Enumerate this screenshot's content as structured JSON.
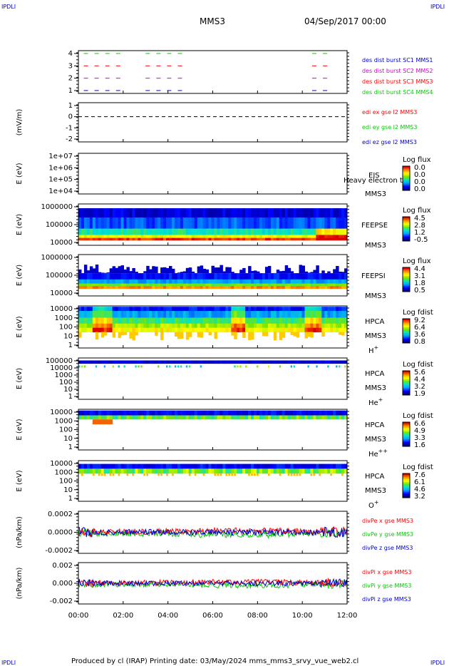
{
  "header": {
    "corner_left_top": "IPDLI",
    "corner_right_top": "IPDLI",
    "corner_left_bottom": "IPDLI",
    "corner_right_bottom": "IPDLI",
    "spacecraft": "MMS3",
    "datetime": "04/Sep/2017 00:00"
  },
  "footer": {
    "text": "Produced by cl (IRAP)   Printing date: 03/May/2024   mms_mms3_srvy_vue_web2.cl"
  },
  "colors": {
    "red": "#ff0000",
    "green": "#00cc00",
    "blue": "#0000cc",
    "magenta": "#cc00cc"
  },
  "chart_data": [
    {
      "id": "burst",
      "type": "line",
      "yticks": [
        "4",
        "3",
        "2",
        "1"
      ],
      "ylabel": "",
      "legend": [
        {
          "text": "des dist burst SC1 MMS1",
          "color": "#0000cc"
        },
        {
          "text": "des dist burst SC2 MMS2",
          "color": "#cc00cc"
        },
        {
          "text": "des dist burst SC3 MMS3",
          "color": "#ff0000"
        },
        {
          "text": "des dist burst SC4 MMS4",
          "color": "#00cc00"
        }
      ]
    },
    {
      "id": "edi",
      "type": "line",
      "yticks": [
        "1",
        "0",
        "-1",
        "-2"
      ],
      "ylabel": "(mV/m)",
      "legend": [
        {
          "text": "edi ex gse l2 MMS3",
          "color": "#ff0000"
        },
        {
          "text": "edi ey gse l2 MMS3",
          "color": "#00cc00"
        },
        {
          "text": "edi ez gse l2 MMS3",
          "color": "#0000cc"
        }
      ]
    },
    {
      "id": "eis",
      "type": "heatmap",
      "yticks": [
        "1e+07",
        "1e+06",
        "1e+05",
        "1e+04"
      ],
      "ylabel": "E (eV)",
      "instrument": "EIS",
      "species": "Heavy electron to",
      "sc": "MMS3",
      "cb_title": "Log flux",
      "cb_ticks": [
        "0.0",
        "0.0",
        "0.0",
        "0.0"
      ]
    },
    {
      "id": "feepse",
      "type": "heatmap",
      "yticks": [
        "1000000",
        "100000",
        "10000"
      ],
      "ylabel": "E (eV)",
      "instrument": "FEEPSE",
      "sc": "MMS3",
      "cb_title": "Log flux",
      "cb_ticks": [
        "4.5",
        "2.8",
        "1.2",
        "-0.5"
      ]
    },
    {
      "id": "feepsi",
      "type": "heatmap",
      "yticks": [
        "1000000",
        "100000",
        "10000"
      ],
      "ylabel": "E (eV)",
      "instrument": "FEEPSI",
      "sc": "MMS3",
      "cb_title": "Log flux",
      "cb_ticks": [
        "4.4",
        "3.1",
        "1.8",
        "0.5"
      ]
    },
    {
      "id": "hpca_h",
      "type": "heatmap",
      "yticks": [
        "10000",
        "1000",
        "100",
        "10",
        "1"
      ],
      "ylabel": "E (eV)",
      "instrument": "HPCA",
      "sc": "MMS3",
      "ion": "H",
      "charge": "+",
      "cb_title": "Log fdist",
      "cb_ticks": [
        "9.2",
        "6.4",
        "3.6",
        "0.8"
      ]
    },
    {
      "id": "hpca_he",
      "type": "heatmap",
      "yticks": [
        "100000",
        "10000",
        "1000",
        "100",
        "10",
        "1"
      ],
      "ylabel": "E (eV)",
      "instrument": "HPCA",
      "sc": "MMS3",
      "ion": "He",
      "charge": "+",
      "cb_title": "Log fdist",
      "cb_ticks": [
        "5.6",
        "4.4",
        "3.2",
        "1.9"
      ]
    },
    {
      "id": "hpca_hepp",
      "type": "heatmap",
      "yticks": [
        "10000",
        "1000",
        "100",
        "10",
        "1"
      ],
      "ylabel": "E (eV)",
      "instrument": "HPCA",
      "sc": "MMS3",
      "ion": "He",
      "charge": "++",
      "cb_title": "Log fdist",
      "cb_ticks": [
        "6.6",
        "4.9",
        "3.3",
        "1.6"
      ]
    },
    {
      "id": "hpca_o",
      "type": "heatmap",
      "yticks": [
        "10000",
        "1000",
        "100",
        "10",
        "1"
      ],
      "ylabel": "E (eV)",
      "instrument": "HPCA",
      "sc": "MMS3",
      "ion": "O",
      "charge": "+",
      "cb_title": "Log fdist",
      "cb_ticks": [
        "7.6",
        "6.1",
        "4.6",
        "3.2"
      ]
    },
    {
      "id": "divpe",
      "type": "line",
      "yticks": [
        "0.0002",
        "0.0000",
        "-0.0002"
      ],
      "ylabel": "(nPa/km)",
      "legend": [
        {
          "text": "divPe x gse MMS3",
          "color": "#ff0000"
        },
        {
          "text": "divPe y gse MMS3",
          "color": "#00cc00"
        },
        {
          "text": "divPe z gse MMS3",
          "color": "#0000cc"
        }
      ]
    },
    {
      "id": "divpi",
      "type": "line",
      "yticks": [
        "0.002",
        "0.000",
        "-0.002"
      ],
      "ylabel": "(nPa/km)",
      "legend": [
        {
          "text": "divPi x gse MMS3",
          "color": "#ff0000"
        },
        {
          "text": "divPi y gse MMS3",
          "color": "#00cc00"
        },
        {
          "text": "divPi z gse MMS3",
          "color": "#0000cc"
        }
      ]
    }
  ],
  "xaxis": {
    "ticks": [
      "00:00",
      "02:00",
      "04:00",
      "06:00",
      "08:00",
      "10:00",
      "12:00"
    ]
  }
}
